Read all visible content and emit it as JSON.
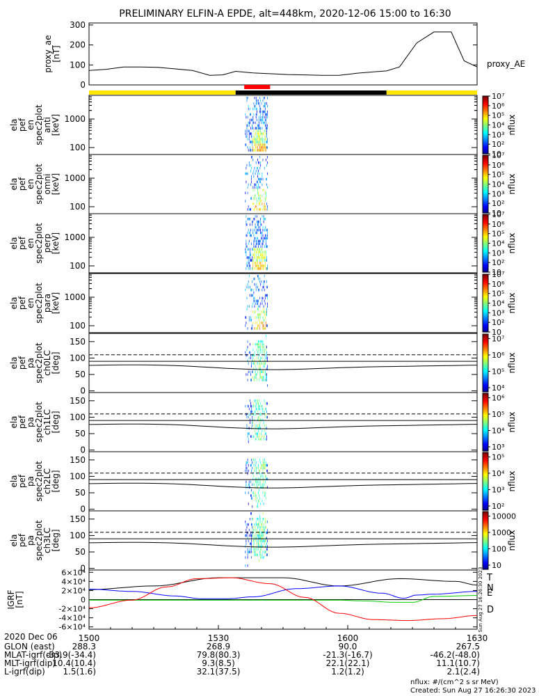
{
  "title": "PRELIMINARY ELFIN-A EPDE, alt=448km, 2020-12-06 15:00 to 16:30",
  "chart_data": [
    {
      "type": "line",
      "panel": "proxy_ae",
      "ylabel": "proxy_ae [nT]",
      "yticks": [
        "0",
        "100",
        "200",
        "300"
      ],
      "ylim": [
        0,
        310
      ],
      "legend": "proxy_AE",
      "series": [
        {
          "name": "proxy_AE",
          "x": [
            0,
            4,
            8,
            12,
            16,
            20,
            24,
            28,
            31,
            34,
            38,
            42,
            46,
            50,
            54,
            58,
            62,
            66,
            69,
            72,
            76,
            80,
            84,
            87,
            90
          ],
          "y": [
            72,
            78,
            90,
            90,
            88,
            80,
            72,
            48,
            50,
            68,
            60,
            56,
            52,
            50,
            48,
            48,
            58,
            65,
            70,
            90,
            210,
            265,
            265,
            120,
            90
          ]
        }
      ]
    },
    {
      "type": "heatmap",
      "panel": "ela_pef_en_spec2plot_anti",
      "ylabel": "ela pef en spec2plot anti [keV]",
      "yticks": [
        "100",
        "1000"
      ],
      "colorbar_label": "nflux",
      "colorbar_ticks": [
        "10",
        "10²",
        "10³",
        "10⁴",
        "10⁵",
        "10⁶",
        "10⁷"
      ]
    },
    {
      "type": "heatmap",
      "panel": "ela_pef_en_spec2plot_omni",
      "ylabel": "ela pef en spec2plot omni [keV]",
      "yticks": [
        "100",
        "1000"
      ],
      "colorbar_label": "nflux",
      "colorbar_ticks": [
        "10",
        "10²",
        "10³",
        "10⁴",
        "10⁵",
        "10⁶",
        "10⁷"
      ]
    },
    {
      "type": "heatmap",
      "panel": "ela_pef_en_spec2plot_perp",
      "ylabel": "ela pef en spec2plot perp [keV]",
      "yticks": [
        "100",
        "1000"
      ],
      "colorbar_label": "nflux",
      "colorbar_ticks": [
        "10",
        "10²",
        "10³",
        "10⁴",
        "10⁵",
        "10⁶",
        "10⁷"
      ]
    },
    {
      "type": "heatmap",
      "panel": "ela_pef_en_spec2plot_para",
      "ylabel": "ela pef en spec2plot para [keV]",
      "yticks": [
        "100",
        "1000"
      ],
      "colorbar_label": "nflux",
      "colorbar_ticks": [
        "10",
        "10²",
        "10³",
        "10⁴",
        "10⁵",
        "10⁶",
        "10⁷"
      ]
    },
    {
      "type": "heatmap",
      "panel": "ela_pef_pa_spec2plot_ch0LC",
      "ylabel": "ela pef pa spec2plot ch0LC [deg]",
      "yticks": [
        "0",
        "50",
        "100",
        "150"
      ],
      "colorbar_label": "nflux",
      "colorbar_ticks": [
        "10⁴",
        "10⁵",
        "10⁶",
        "10⁷"
      ]
    },
    {
      "type": "heatmap",
      "panel": "ela_pef_pa_spec2plot_ch1LC",
      "ylabel": "ela pef pa spec2plot ch1LC [deg]",
      "yticks": [
        "0",
        "50",
        "100",
        "150"
      ],
      "colorbar_label": "nflux",
      "colorbar_ticks": [
        "10³",
        "10⁴",
        "10⁵",
        "10⁶"
      ]
    },
    {
      "type": "heatmap",
      "panel": "ela_pef_pa_spec2plot_ch2LC",
      "ylabel": "ela pef pa spec2plot ch2LC [deg]",
      "yticks": [
        "0",
        "50",
        "100",
        "150"
      ],
      "colorbar_label": "nflux",
      "colorbar_ticks": [
        "10²",
        "10³",
        "10⁴",
        "10⁵"
      ]
    },
    {
      "type": "heatmap",
      "panel": "ela_pef_pa_spec2plot_ch3LC",
      "ylabel": "ela pef pa spec2plot ch3LC [deg]",
      "yticks": [
        "0",
        "50",
        "100",
        "150"
      ],
      "colorbar_label": "nflux",
      "colorbar_ticks": [
        "10",
        "100",
        "1000",
        "10000"
      ]
    },
    {
      "type": "line",
      "panel": "IGRF",
      "ylabel": "IGRF [nT]",
      "yticks": [
        "-6×10⁴",
        "-4×10⁴",
        "-2×10⁴",
        "0",
        "2×10⁴",
        "4×10⁴",
        "6×10⁴"
      ],
      "ylim": [
        -65000,
        65000
      ],
      "legend": [
        "T",
        "N",
        "E",
        "D"
      ],
      "series": [
        {
          "name": "T",
          "color": "#000000",
          "x": [
            0,
            15,
            30,
            45,
            58,
            72,
            85,
            90
          ],
          "y": [
            22000,
            30000,
            48000,
            48000,
            30000,
            46000,
            40000,
            32000
          ]
        },
        {
          "name": "N",
          "color": "#0000ff",
          "x": [
            0,
            10,
            20,
            26,
            32,
            38,
            48,
            58,
            68,
            73,
            76,
            80,
            90
          ],
          "y": [
            23000,
            18000,
            8000,
            2000,
            2000,
            6000,
            24000,
            30000,
            14000,
            3000,
            10000,
            12000,
            18000
          ]
        },
        {
          "name": "E",
          "color": "#00cc00",
          "x": [
            0,
            20,
            40,
            57,
            64,
            71,
            75,
            80,
            90
          ],
          "y": [
            -1000,
            -1000,
            -1000,
            -1000,
            -3000,
            -6000,
            -6000,
            7000,
            9000
          ]
        },
        {
          "name": "D",
          "color": "#ff0000",
          "x": [
            0,
            10,
            18,
            25,
            33,
            42,
            50,
            58,
            66,
            74,
            82,
            90
          ],
          "y": [
            -18000,
            -1000,
            28000,
            46000,
            48000,
            35000,
            5000,
            -30000,
            -44000,
            -46000,
            -42000,
            -35000
          ]
        }
      ]
    }
  ],
  "segment_bar": {
    "colors": {
      "yellow": "#ffe500",
      "black": "#000000",
      "red": "#ff0000"
    }
  },
  "xaxis": {
    "ticks": [
      "1500",
      "1530",
      "1600",
      "1630"
    ],
    "date": "2020 Dec 06",
    "rows": [
      {
        "label": "GLON (east)",
        "values": [
          "288.3",
          "268.9",
          "90.0",
          "267.5"
        ]
      },
      {
        "label": "MLAT-igrf(dip)",
        "values": [
          "-33.9(-34.4)",
          "79.8(80.3)",
          "-21.3(-16.7)",
          "-46.2(-48.0)"
        ]
      },
      {
        "label": "MLT-igrf(dip)",
        "values": [
          "10.4(10.4)",
          "9.3(8.5)",
          "22.1(22.1)",
          "11.1(10.7)"
        ]
      },
      {
        "label": "L-igrf(dip)",
        "values": [
          "1.5(1.6)",
          "32.1(37.5)",
          "1.2(1.2)",
          "2.1(2.4)"
        ]
      }
    ]
  },
  "footer": {
    "units": "nflux: #/(cm^2 s sr MeV)",
    "created": "Created: Sun Aug 27 16:26:30 2023",
    "side_stamp": "Sun Aug 27 16:26:30 2023"
  }
}
